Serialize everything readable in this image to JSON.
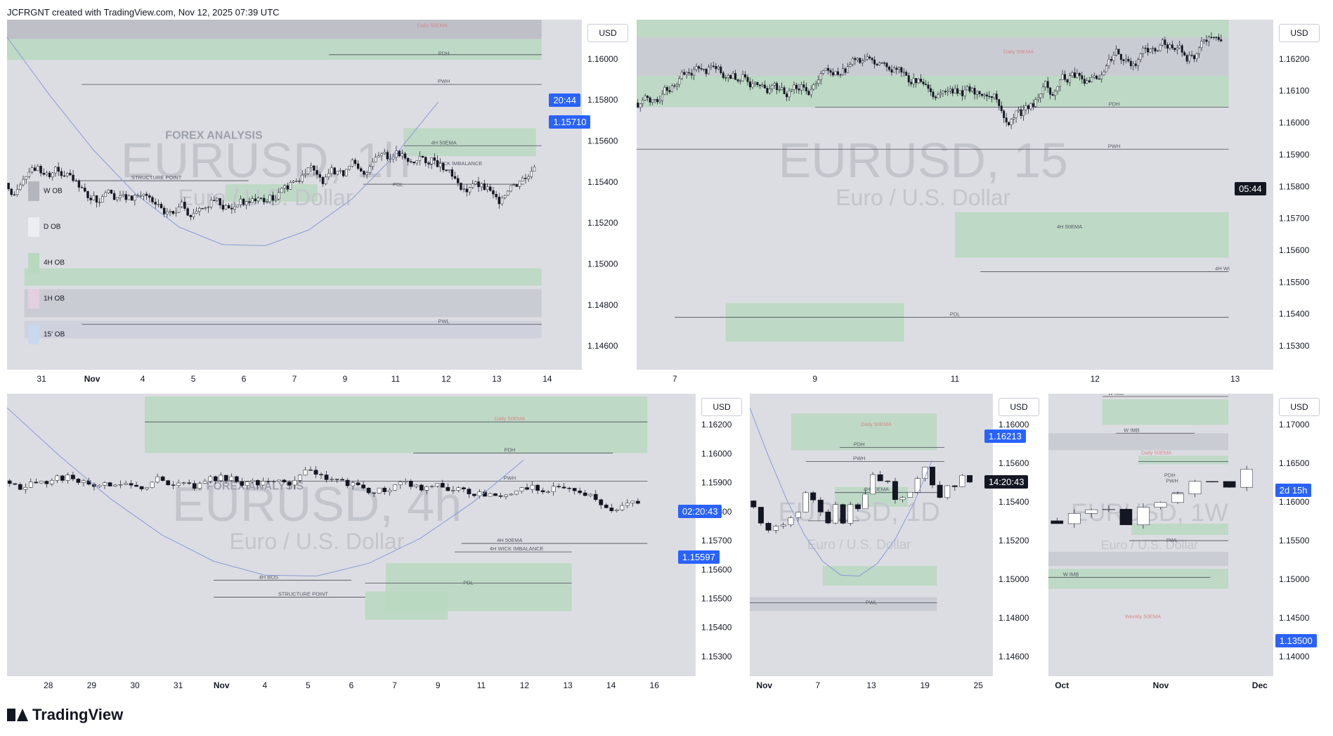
{
  "header": {
    "text": "JCFRGNT created with TradingView.com, Nov 12, 2025 07:39 UTC"
  },
  "footer": {
    "brand": "TradingView"
  },
  "colors": {
    "bg": "#dcdde2",
    "candle": "#131722",
    "zone_green": "#b8d8c0",
    "zone_grey": "#c7c9d1",
    "ema": "#8a9ad8",
    "badge_blue": "#2962ff"
  },
  "panels": [
    {
      "id": "p1",
      "currency": "USD",
      "symbol": "EURUSD, 1h",
      "subtitle": "Euro / U.S. Dollar",
      "watermark": "FOREX ANALYSIS",
      "price_ticks": [
        "1.16000",
        "1.15800",
        "1.15600",
        "1.15400",
        "1.15200",
        "1.15000",
        "1.14800",
        "1.14600"
      ],
      "time_ticks": [
        "31",
        "Nov",
        "4",
        "5",
        "6",
        "7",
        "9",
        "11",
        "12",
        "13",
        "14"
      ],
      "badges": [
        {
          "text": "20:44",
          "kind": "blue"
        },
        {
          "text": "1.15710",
          "kind": "blue"
        }
      ],
      "labels": [
        "Daily 50EMA",
        "PDH",
        "PWH",
        "4H 50EMA",
        "4H WICK IMBALANCE",
        "STRUCTURE POINT",
        "PDL",
        "PWL"
      ],
      "legend": [
        {
          "label": "W OB",
          "color": "#b4b6be"
        },
        {
          "label": "D OB",
          "color": "#eceef2"
        },
        {
          "label": "4H OB",
          "color": "#b8d8c0"
        },
        {
          "label": "1H OB",
          "color": "#e2cfe0"
        },
        {
          "label": "15' OB",
          "color": "#c8d8ee"
        }
      ]
    },
    {
      "id": "p2",
      "currency": "USD",
      "symbol": "EURUSD, 15",
      "subtitle": "Euro / U.S. Dollar",
      "price_ticks": [
        "1.16200",
        "1.16100",
        "1.16000",
        "1.15900",
        "1.15800",
        "1.15700",
        "1.15600",
        "1.15500",
        "1.15400",
        "1.15300"
      ],
      "time_ticks": [
        "7",
        "9",
        "11",
        "12",
        "13"
      ],
      "badges": [
        {
          "text": "05:44",
          "kind": "dark"
        }
      ],
      "labels": [
        "Daily 50EMA",
        "PDH",
        "PWH",
        "4H 50EMA",
        "4H WI",
        "PDL"
      ]
    },
    {
      "id": "p3",
      "currency": "USD",
      "symbol": "EURUSD, 4h",
      "subtitle": "Euro / U.S. Dollar",
      "watermark": "FOREX ANALYSIS",
      "price_ticks": [
        "1.16200",
        "1.16000",
        "1.15900",
        "1.15800",
        "1.15700",
        "1.15600",
        "1.15500",
        "1.15400",
        "1.15300"
      ],
      "time_ticks": [
        "28",
        "29",
        "30",
        "31",
        "Nov",
        "4",
        "5",
        "6",
        "7",
        "9",
        "11",
        "12",
        "13",
        "14",
        "16"
      ],
      "badges": [
        {
          "text": "02:20:43",
          "kind": "blue"
        },
        {
          "text": "1.15597",
          "kind": "blue"
        }
      ],
      "labels": [
        "Daily 50EMA",
        "PDH",
        "PWH",
        "4H 50EMA",
        "4H WICK IMBALANCE",
        "4H BOS",
        "STRUCTURE POINT",
        "PDL"
      ]
    },
    {
      "id": "p4",
      "currency": "USD",
      "symbol": "EURUSD, 1D",
      "subtitle": "Euro / U.S. Dollar",
      "price_ticks": [
        "1.16000",
        "1.15600",
        "1.15400",
        "1.15200",
        "1.15000",
        "1.14800",
        "1.14600"
      ],
      "time_ticks": [
        "Nov",
        "7",
        "13",
        "19",
        "25"
      ],
      "badges": [
        {
          "text": "1.16213",
          "kind": "blue"
        },
        {
          "text": "14:20:43",
          "kind": "dark"
        }
      ],
      "labels": [
        "Daily 50EMA",
        "PDH",
        "PWH",
        "4H 50EMA",
        "PDL",
        "PWL"
      ]
    },
    {
      "id": "p5",
      "currency": "USD",
      "symbol": "EURUSD, 1W",
      "subtitle": "Euro / U.S. Dollar",
      "price_ticks": [
        "1.17000",
        "1.16500",
        "1.16000",
        "1.15500",
        "1.15000",
        "1.14500",
        "1.14000"
      ],
      "time_ticks": [
        "Oct",
        "Nov",
        "Dec"
      ],
      "badges": [
        {
          "text": "2d 15h",
          "kind": "blue"
        },
        {
          "text": "1.13500",
          "kind": "blue"
        }
      ],
      "labels": [
        "W IMB",
        "W IMB",
        "Daily 50EMA",
        "PDH",
        "PWH",
        "PWL",
        "W IMB",
        "Weekly 50EMA"
      ]
    }
  ]
}
